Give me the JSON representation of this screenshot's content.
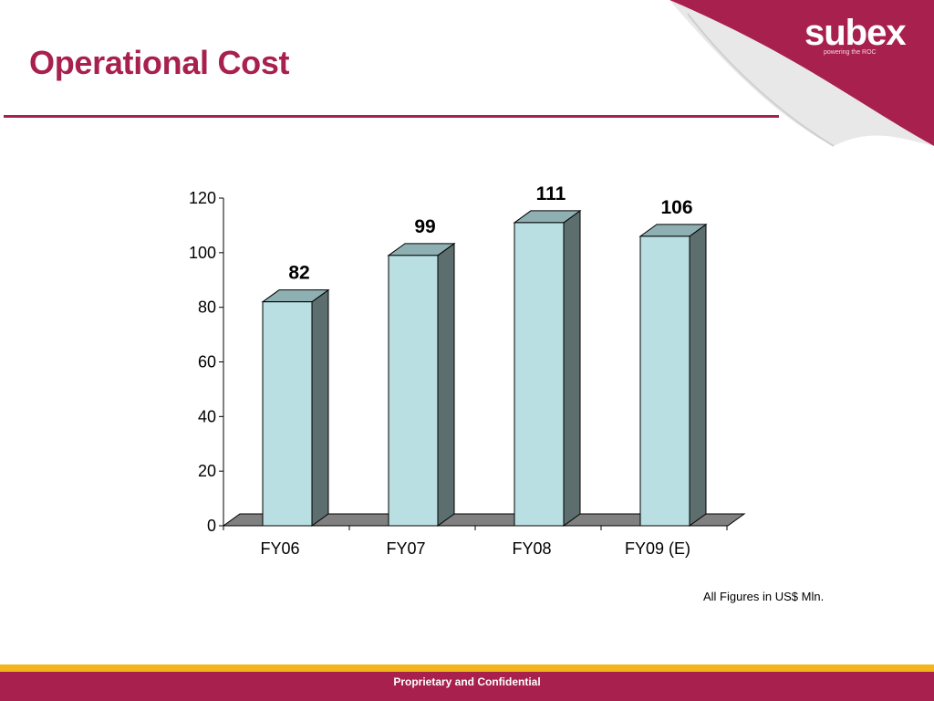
{
  "slide": {
    "title": "Operational Cost",
    "note": "All Figures in US$ Mln.",
    "footer": "Proprietary and Confidential"
  },
  "logo": {
    "name": "subex",
    "tagline": "powering the ROC"
  },
  "colors": {
    "brand": "#a8204e",
    "gold": "#f2b51a",
    "bar_front": "#b9dfe3",
    "bar_side": "#5d6e6e",
    "bar_top": "#8fb0b3",
    "floor": "#808080"
  },
  "chart_data": {
    "type": "bar",
    "categories": [
      "FY06",
      "FY07",
      "FY08",
      "FY09 (E)"
    ],
    "values": [
      82,
      99,
      111,
      106
    ],
    "data_labels": [
      "82",
      "99",
      "111",
      "106"
    ],
    "ylim": [
      0,
      120
    ],
    "yticks": [
      0,
      20,
      40,
      60,
      80,
      100,
      120
    ],
    "xlabel": "",
    "ylabel": "",
    "grid": false,
    "style": "3d-columns"
  }
}
